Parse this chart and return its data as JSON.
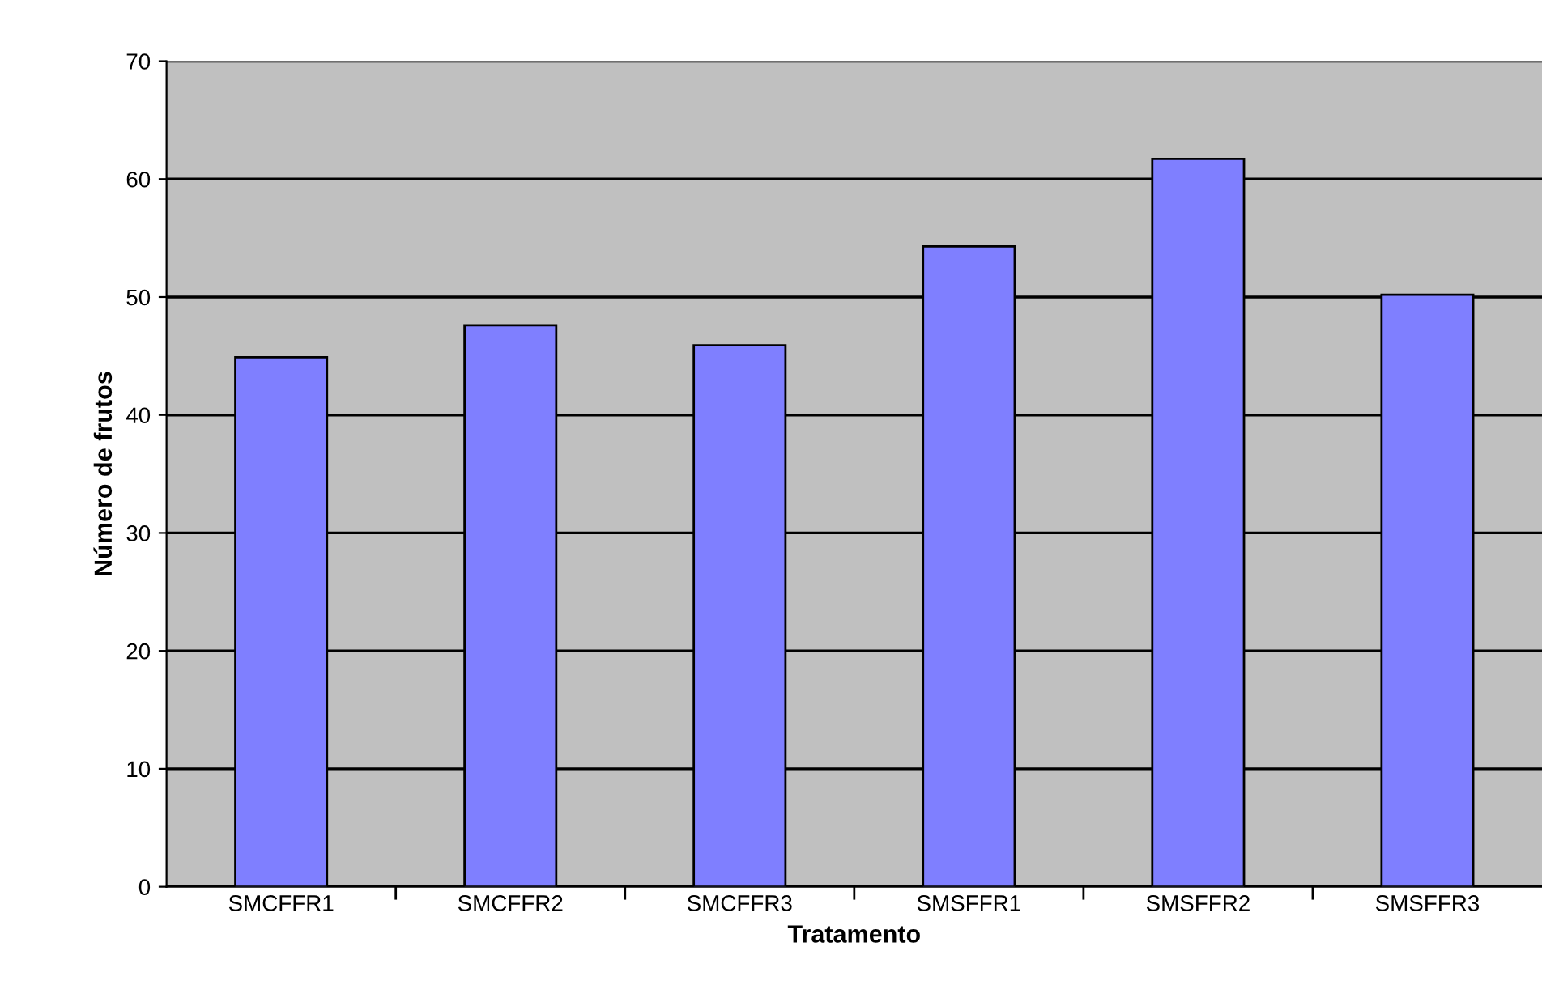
{
  "chart_data": {
    "type": "bar",
    "xlabel": "Tratamento",
    "ylabel": "Número de frutos",
    "categories": [
      "SMCFFR1",
      "SMCFFR2",
      "SMCFFR3",
      "SMSFFR1",
      "SMSFFR2",
      "SMSFFR3"
    ],
    "values": [
      44.9,
      47.6,
      45.9,
      54.3,
      61.7,
      50.2
    ],
    "color": "#7f7fff",
    "ylim": [
      0,
      70
    ],
    "yticks": [
      0,
      10,
      20,
      30,
      40,
      50,
      60,
      70
    ],
    "grid": "y"
  }
}
